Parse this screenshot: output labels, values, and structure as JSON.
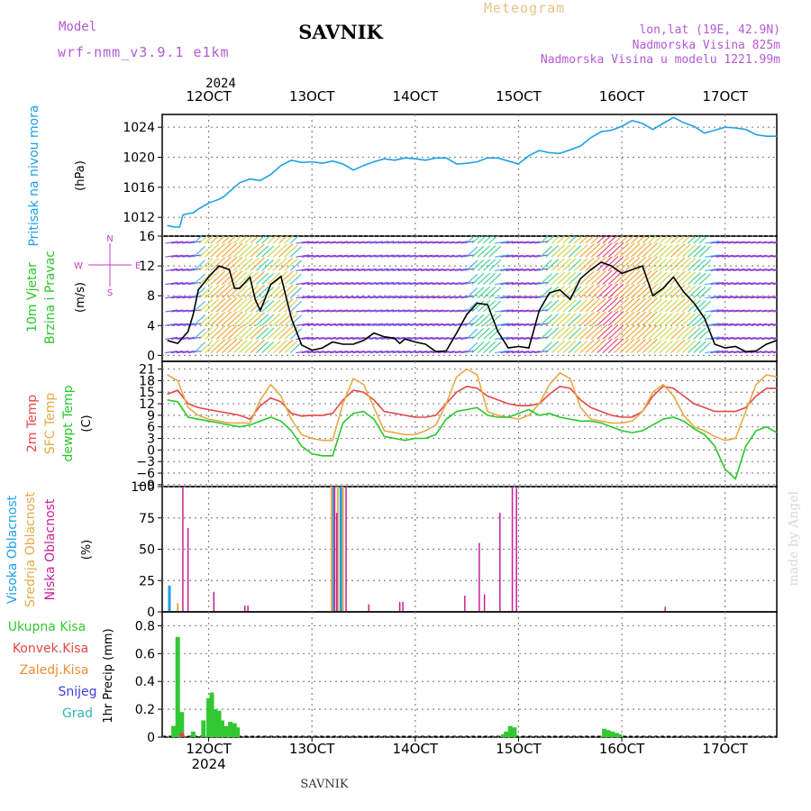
{
  "header": {
    "model_label": "Model",
    "model_name": "wrf-nmm_v3.9.1 e1km",
    "title": "SAVNIK",
    "meteogram": "Meteogram",
    "lonlat": "lon,lat (19E, 42.9N)",
    "elev": "Nadmorska Visina 825m",
    "elev_model": "Nadmorska Visina u modelu 1221.99m"
  },
  "footer": {
    "station": "SAVNIK",
    "watermark": "made by Angel"
  },
  "colors": {
    "pressure": "#1ea0e6",
    "temp2m": "#e64646",
    "sfc": "#e6aa46",
    "dew": "#28c828",
    "high": "#1ea0e6",
    "mid": "#e6aa46",
    "low": "#c81e96",
    "precip": "#32c832",
    "conv": "#e64646",
    "frz": "#f08c32",
    "snow": "#3c3cdc",
    "grad": "#32b4b4",
    "wind": "#c83cc8"
  },
  "time_axis": {
    "year": "2024",
    "labels": [
      "12OCT",
      "13OCT",
      "14OCT",
      "15OCT",
      "16OCT",
      "17OCT"
    ]
  },
  "chart_data": [
    {
      "type": "line",
      "ylabel": "Pritisak na nivou mora",
      "unit": "(hPa)",
      "yticks": [
        1012,
        1016,
        1020,
        1024
      ],
      "ylim": [
        1009.5,
        1025.7
      ],
      "x_days": [
        11.6,
        11.67,
        11.72,
        11.75,
        11.8,
        11.85,
        11.9,
        12.0,
        12.1,
        12.15,
        12.2,
        12.3,
        12.4,
        12.5,
        12.6,
        12.7,
        12.8,
        12.9,
        13.0,
        13.1,
        13.2,
        13.3,
        13.4,
        13.5,
        13.6,
        13.7,
        13.8,
        13.9,
        14.0,
        14.1,
        14.2,
        14.3,
        14.4,
        14.5,
        14.6,
        14.7,
        14.8,
        14.9,
        15.0,
        15.1,
        15.2,
        15.3,
        15.4,
        15.5,
        15.6,
        15.7,
        15.8,
        15.9,
        16.0,
        16.1,
        16.2,
        16.3,
        16.4,
        16.5,
        16.6,
        16.7,
        16.8,
        16.9,
        17.0,
        17.1,
        17.2,
        17.3,
        17.4,
        17.5
      ],
      "values": [
        1010.9,
        1010.7,
        1010.7,
        1012.3,
        1012.5,
        1012.6,
        1013.1,
        1013.9,
        1014.4,
        1014.8,
        1015.4,
        1016.6,
        1017.1,
        1016.9,
        1017.7,
        1018.9,
        1019.6,
        1019.3,
        1019.4,
        1019.2,
        1019.5,
        1019.1,
        1018.3,
        1018.9,
        1019.4,
        1019.8,
        1019.6,
        1019.9,
        1019.8,
        1019.6,
        1019.9,
        1019.9,
        1019.1,
        1019.2,
        1019.4,
        1019.9,
        1019.9,
        1019.5,
        1019.1,
        1020.2,
        1020.9,
        1020.6,
        1020.5,
        1021.0,
        1021.5,
        1022.6,
        1023.4,
        1023.6,
        1024.1,
        1024.9,
        1024.5,
        1023.7,
        1024.5,
        1025.3,
        1024.6,
        1024.1,
        1023.2,
        1023.6,
        1024.0,
        1023.9,
        1023.7,
        1023.0,
        1022.8,
        1022.8
      ]
    },
    {
      "type": "line",
      "ylabel": "10m Vjetar Brzina i Pravac",
      "unit": "(m/s)",
      "compass": [
        "N",
        "S",
        "E",
        "W"
      ],
      "yticks": [
        0,
        4,
        8,
        12,
        16
      ],
      "ylim": [
        -0.8,
        16
      ],
      "x_days": [
        11.6,
        11.7,
        11.8,
        11.85,
        11.9,
        12.0,
        12.1,
        12.2,
        12.25,
        12.3,
        12.4,
        12.45,
        12.5,
        12.6,
        12.7,
        12.8,
        12.9,
        13.0,
        13.1,
        13.2,
        13.3,
        13.4,
        13.5,
        13.6,
        13.7,
        13.8,
        13.85,
        13.9,
        14.0,
        14.1,
        14.2,
        14.3,
        14.4,
        14.5,
        14.6,
        14.7,
        14.8,
        14.9,
        15.0,
        15.1,
        15.2,
        15.3,
        15.4,
        15.5,
        15.6,
        15.7,
        15.8,
        15.9,
        16.0,
        16.1,
        16.2,
        16.3,
        16.4,
        16.5,
        16.6,
        16.7,
        16.8,
        16.9,
        17.0,
        17.1,
        17.2,
        17.3,
        17.4,
        17.5
      ],
      "values": [
        2.0,
        1.6,
        3.2,
        5.5,
        8.8,
        10.5,
        12.0,
        11.5,
        9.0,
        9.0,
        10.5,
        7.5,
        6.0,
        9.5,
        10.6,
        5.0,
        1.4,
        0.7,
        1.0,
        1.8,
        1.5,
        1.5,
        2.0,
        3.0,
        2.5,
        2.3,
        1.6,
        2.2,
        1.8,
        1.5,
        0.5,
        0.6,
        3.0,
        5.5,
        7.0,
        6.8,
        3.2,
        1.0,
        1.2,
        1.0,
        6.0,
        8.4,
        8.8,
        7.5,
        10.3,
        11.5,
        12.5,
        12.0,
        11.0,
        11.5,
        12.0,
        8.0,
        9.0,
        10.5,
        8.5,
        7.0,
        5.0,
        1.5,
        1.0,
        1.2,
        0.5,
        0.6,
        1.5,
        2.0
      ]
    },
    {
      "type": "line",
      "ylabel": "2m Temp / SFC Temp / dewpt Temp",
      "unit": "(C)",
      "yticks": [
        -9,
        -6,
        -3,
        0,
        3,
        6,
        9,
        12,
        15,
        18,
        21
      ],
      "ylim": [
        -9.5,
        23
      ],
      "series": [
        {
          "name": "2m Temp",
          "x_days": [
            11.6,
            11.7,
            11.8,
            11.9,
            12.0,
            12.1,
            12.2,
            12.3,
            12.4,
            12.5,
            12.6,
            12.7,
            12.8,
            12.9,
            13.0,
            13.1,
            13.2,
            13.3,
            13.4,
            13.5,
            13.6,
            13.7,
            13.8,
            13.9,
            14.0,
            14.1,
            14.2,
            14.3,
            14.4,
            14.5,
            14.6,
            14.7,
            14.8,
            14.9,
            15.0,
            15.1,
            15.2,
            15.3,
            15.4,
            15.5,
            15.6,
            15.7,
            15.8,
            15.9,
            16.0,
            16.1,
            16.2,
            16.3,
            16.4,
            16.5,
            16.6,
            16.7,
            16.8,
            16.9,
            17.0,
            17.1,
            17.2,
            17.3,
            17.4,
            17.5
          ],
          "values": [
            14.5,
            15.5,
            12.0,
            11.0,
            10.5,
            10.0,
            9.5,
            9.0,
            8.0,
            11.5,
            13.5,
            12.5,
            9.5,
            8.8,
            9.0,
            9.0,
            9.5,
            13.0,
            15.5,
            15.0,
            13.0,
            10.0,
            9.5,
            9.0,
            8.5,
            8.5,
            9.0,
            12.0,
            15.0,
            16.5,
            16.0,
            14.0,
            13.0,
            12.0,
            11.5,
            11.5,
            12.0,
            14.5,
            16.5,
            16.0,
            13.0,
            11.0,
            10.0,
            9.0,
            8.5,
            8.5,
            10.0,
            14.0,
            16.5,
            16.0,
            14.0,
            12.0,
            11.0,
            10.0,
            10.0,
            10.0,
            11.0,
            14.0,
            16.0,
            16.0
          ]
        },
        {
          "name": "SFC Temp",
          "x_days": [
            11.6,
            11.7,
            11.8,
            11.9,
            12.0,
            12.1,
            12.2,
            12.3,
            12.4,
            12.5,
            12.6,
            12.7,
            12.8,
            12.9,
            13.0,
            13.1,
            13.2,
            13.3,
            13.4,
            13.5,
            13.6,
            13.7,
            13.8,
            13.9,
            14.0,
            14.1,
            14.2,
            14.3,
            14.4,
            14.5,
            14.6,
            14.7,
            14.8,
            14.9,
            15.0,
            15.1,
            15.2,
            15.3,
            15.4,
            15.5,
            15.6,
            15.7,
            15.8,
            15.9,
            16.0,
            16.1,
            16.2,
            16.3,
            16.4,
            16.5,
            16.6,
            16.7,
            16.8,
            16.9,
            17.0,
            17.1,
            17.2,
            17.3,
            17.4,
            17.5
          ],
          "values": [
            19.5,
            18.0,
            11.0,
            9.0,
            8.0,
            7.5,
            7.0,
            7.0,
            7.0,
            13.0,
            17.0,
            14.0,
            8.0,
            4.0,
            3.0,
            2.5,
            2.5,
            12.0,
            18.5,
            17.0,
            11.0,
            5.0,
            4.5,
            4.0,
            4.0,
            5.0,
            6.5,
            12.0,
            19.0,
            21.0,
            19.5,
            10.0,
            9.0,
            8.5,
            8.0,
            9.0,
            12.0,
            17.0,
            20.0,
            18.5,
            11.0,
            8.0,
            7.5,
            7.0,
            7.0,
            7.5,
            10.0,
            15.0,
            17.0,
            14.0,
            9.0,
            6.0,
            5.0,
            3.5,
            2.5,
            3.0,
            10.0,
            17.0,
            19.5,
            19.0
          ]
        },
        {
          "name": "dewpt Temp",
          "x_days": [
            11.6,
            11.7,
            11.8,
            11.9,
            12.0,
            12.1,
            12.2,
            12.3,
            12.4,
            12.5,
            12.6,
            12.7,
            12.8,
            12.9,
            13.0,
            13.1,
            13.2,
            13.3,
            13.4,
            13.5,
            13.6,
            13.7,
            13.8,
            13.9,
            14.0,
            14.1,
            14.2,
            14.3,
            14.4,
            14.5,
            14.6,
            14.7,
            14.8,
            14.9,
            15.0,
            15.1,
            15.2,
            15.3,
            15.4,
            15.5,
            15.6,
            15.7,
            15.8,
            15.9,
            16.0,
            16.1,
            16.2,
            16.3,
            16.4,
            16.5,
            16.6,
            16.7,
            16.8,
            16.9,
            17.0,
            17.1,
            17.2,
            17.3,
            17.4,
            17.5
          ],
          "values": [
            13.0,
            12.5,
            8.5,
            8.0,
            7.5,
            7.0,
            6.5,
            6.0,
            6.5,
            7.5,
            8.5,
            7.5,
            5.0,
            1.0,
            -1.0,
            -1.5,
            -1.5,
            7.0,
            9.5,
            10.0,
            8.0,
            3.5,
            3.0,
            2.5,
            3.0,
            3.0,
            4.0,
            8.0,
            10.0,
            10.5,
            11.0,
            9.0,
            8.5,
            8.5,
            9.5,
            10.5,
            9.0,
            9.5,
            8.5,
            8.0,
            7.5,
            7.5,
            7.0,
            6.0,
            5.0,
            4.5,
            5.0,
            6.5,
            8.0,
            8.5,
            7.5,
            5.5,
            4.0,
            1.0,
            -5.0,
            -7.5,
            1.0,
            5.0,
            6.0,
            4.5
          ]
        }
      ]
    },
    {
      "type": "bar",
      "ylabel": "Visoka Oblacnost / Srednja Oblacnost / Niska Oblacnost",
      "unit": "(%)",
      "yticks": [
        0,
        25,
        50,
        75,
        100
      ],
      "ylim": [
        0,
        100
      ],
      "series": [
        {
          "name": "Visoka Oblacnost",
          "x_days": [
            11.62,
            13.2,
            13.28
          ],
          "values": [
            21,
            100,
            100
          ]
        },
        {
          "name": "Srednja Oblacnost",
          "x_days": [
            11.7,
            13.19,
            13.25,
            13.3
          ],
          "values": [
            7,
            100,
            100,
            100
          ]
        },
        {
          "name": "Niska Oblacnost",
          "x_days": [
            11.75,
            11.8,
            12.05,
            12.35,
            12.38,
            13.22,
            13.24,
            13.33,
            13.55,
            13.85,
            13.88,
            14.48,
            14.62,
            14.67,
            14.82,
            14.94,
            14.98,
            16.42
          ],
          "values": [
            100,
            67,
            16,
            5,
            5,
            100,
            79,
            100,
            6,
            8,
            8,
            13,
            55,
            14,
            79,
            100,
            99,
            4
          ]
        }
      ]
    },
    {
      "type": "bar",
      "ylabel": "1hr Precip",
      "unit": "(mm)",
      "legend": [
        "Ukupna Kisa",
        "Konvek.Kisa",
        "Zaledj.Kisa",
        "Snijeg",
        "Grad"
      ],
      "yticks": [
        0,
        0.2,
        0.4,
        0.6,
        0.8
      ],
      "ylim": [
        0,
        0.9
      ],
      "series": [
        {
          "name": "Ukupna Kisa",
          "x_days": [
            11.66,
            11.7,
            11.74,
            11.85,
            11.95,
            12.0,
            12.03,
            12.06,
            12.1,
            12.13,
            12.17,
            12.21,
            12.25,
            12.28,
            14.85,
            14.88,
            14.92,
            14.96,
            15.83,
            15.87,
            15.91,
            15.95,
            15.98
          ],
          "values": [
            0.08,
            0.72,
            0.18,
            0.04,
            0.12,
            0.28,
            0.32,
            0.2,
            0.19,
            0.12,
            0.08,
            0.11,
            0.1,
            0.07,
            0.02,
            0.04,
            0.08,
            0.07,
            0.06,
            0.05,
            0.04,
            0.03,
            0.02
          ]
        },
        {
          "name": "Konvek.Kisa",
          "x_days": [
            11.74
          ],
          "values": [
            0.03
          ]
        }
      ]
    }
  ]
}
